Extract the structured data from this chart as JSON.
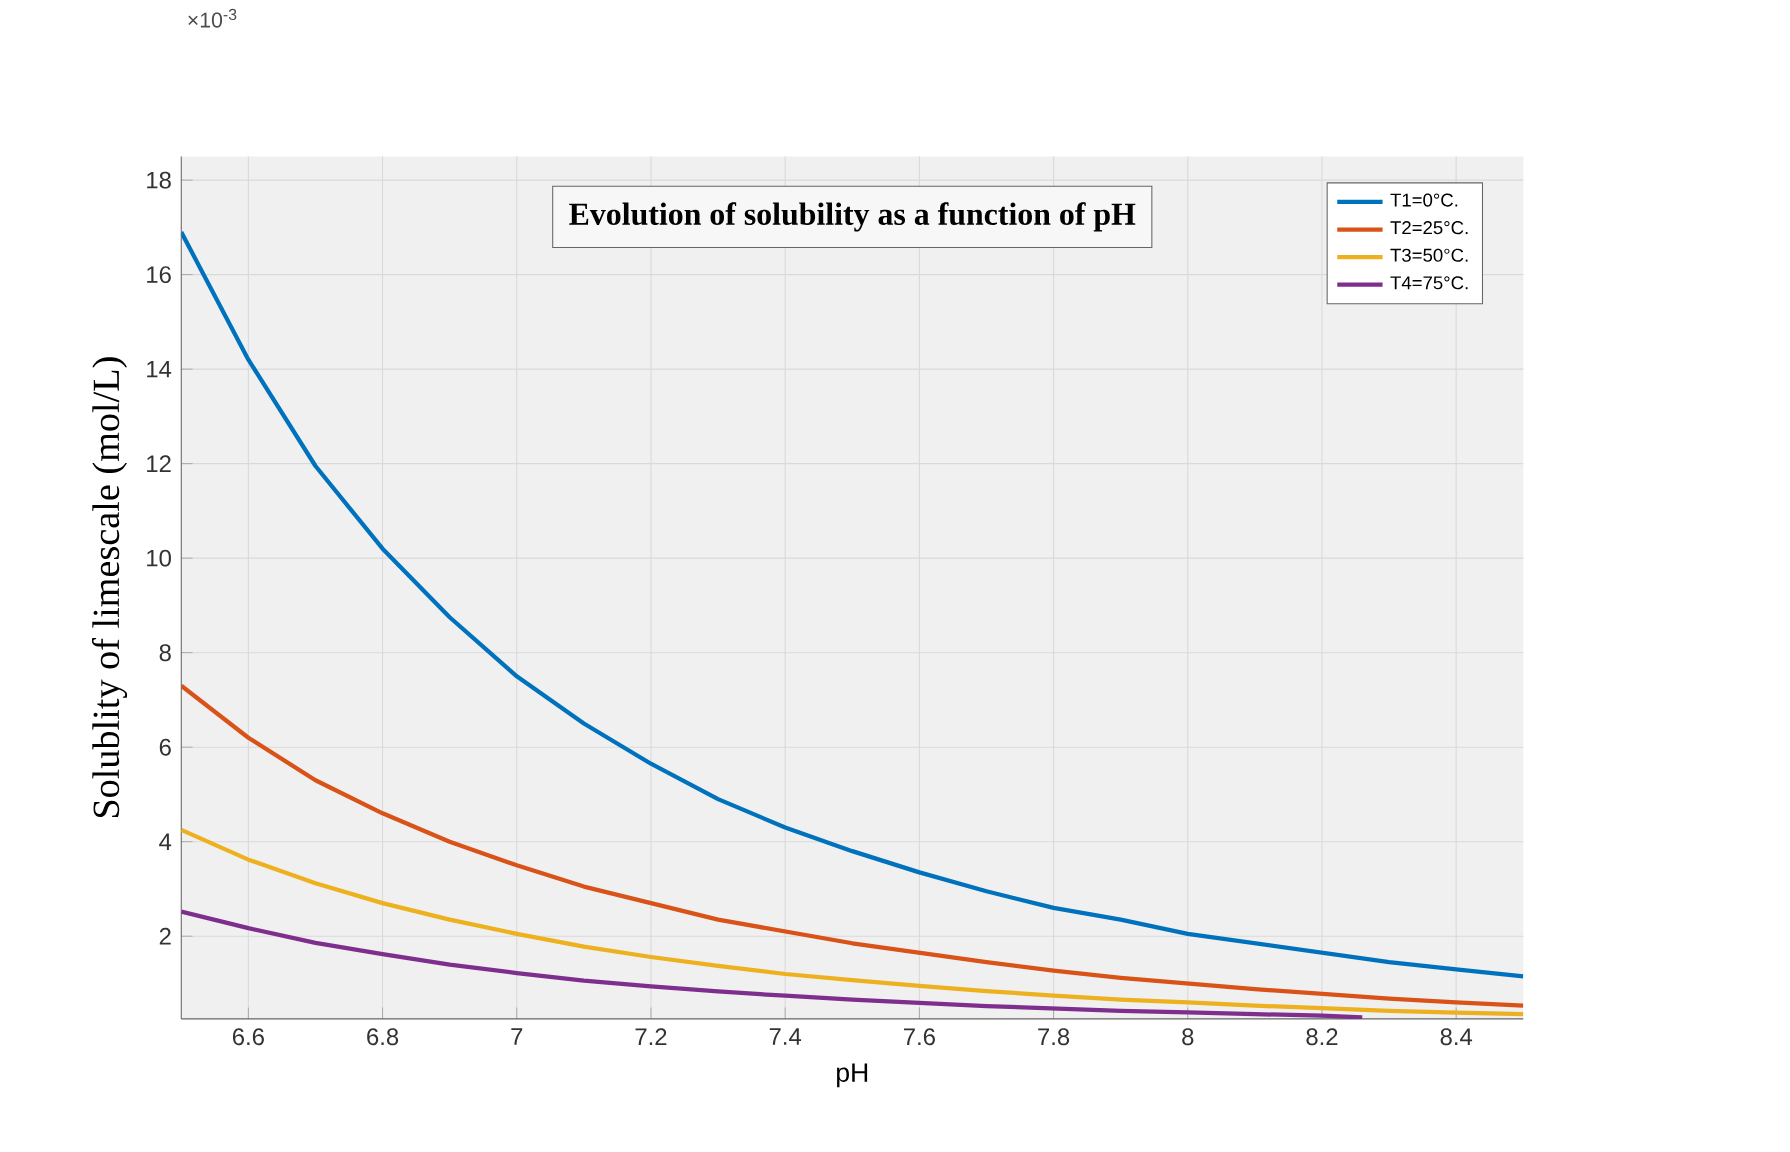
{
  "chart_data": {
    "type": "line",
    "title": "Evolution of solubility as a function of pH",
    "xlabel": "pH",
    "ylabel": "Solublity of limescale (mol/L)",
    "annotations": [
      "×10$^{-3}$"
    ],
    "xlim": [
      6.5,
      8.5
    ],
    "ylim": [
      0.25,
      18.5
    ],
    "xticks": [
      6.6,
      6.8,
      7,
      7.2,
      7.4,
      7.6,
      7.8,
      8,
      8.2,
      8.4
    ],
    "yticks": [
      2,
      4,
      6,
      8,
      10,
      12,
      14,
      16,
      18
    ],
    "grid": true,
    "legend": "top right",
    "series": [
      {
        "name": "T1=0°C.",
        "color": "#0072bd",
        "x": [
          6.5,
          6.6,
          6.7,
          6.8,
          6.9,
          7.0,
          7.1,
          7.2,
          7.3,
          7.4,
          7.5,
          7.6,
          7.7,
          7.8,
          7.9,
          8.0,
          8.1,
          8.2,
          8.3,
          8.4,
          8.5
        ],
        "values": [
          16.9,
          14.2,
          11.95,
          10.2,
          8.75,
          7.5,
          6.5,
          5.65,
          4.9,
          4.3,
          3.8,
          3.35,
          2.95,
          2.6,
          2.35,
          2.05,
          1.85,
          1.65,
          1.45,
          1.3,
          1.15
        ]
      },
      {
        "name": "T2=25°C.",
        "color": "#d95319",
        "x": [
          6.5,
          6.6,
          6.7,
          6.8,
          6.9,
          7.0,
          7.1,
          7.2,
          7.3,
          7.4,
          7.5,
          7.6,
          7.7,
          7.8,
          7.9,
          8.0,
          8.1,
          8.2,
          8.3,
          8.4,
          8.5
        ],
        "values": [
          7.3,
          6.2,
          5.3,
          4.6,
          4.0,
          3.5,
          3.05,
          2.7,
          2.35,
          2.1,
          1.85,
          1.65,
          1.45,
          1.27,
          1.12,
          1.0,
          0.88,
          0.78,
          0.68,
          0.6,
          0.53
        ]
      },
      {
        "name": "T3=50°C.",
        "color": "#edb120",
        "x": [
          6.5,
          6.6,
          6.7,
          6.8,
          6.9,
          7.0,
          7.1,
          7.2,
          7.3,
          7.4,
          7.5,
          7.6,
          7.7,
          7.8,
          7.9,
          8.0,
          8.1,
          8.2,
          8.3,
          8.4,
          8.5
        ],
        "values": [
          4.25,
          3.62,
          3.12,
          2.7,
          2.35,
          2.05,
          1.78,
          1.56,
          1.37,
          1.2,
          1.07,
          0.95,
          0.84,
          0.74,
          0.66,
          0.6,
          0.53,
          0.48,
          0.42,
          0.38,
          0.35
        ]
      },
      {
        "name": "T4=75°C.",
        "color": "#7e2f8e",
        "x": [
          6.5,
          6.6,
          6.7,
          6.8,
          6.9,
          7.0,
          7.1,
          7.2,
          7.3,
          7.4,
          7.5,
          7.6,
          7.7,
          7.8,
          7.9,
          8.0,
          8.1,
          8.2,
          8.26
        ],
        "values": [
          2.52,
          2.17,
          1.86,
          1.62,
          1.4,
          1.22,
          1.06,
          0.94,
          0.83,
          0.74,
          0.66,
          0.59,
          0.52,
          0.47,
          0.42,
          0.39,
          0.35,
          0.32,
          0.28
        ]
      }
    ]
  }
}
